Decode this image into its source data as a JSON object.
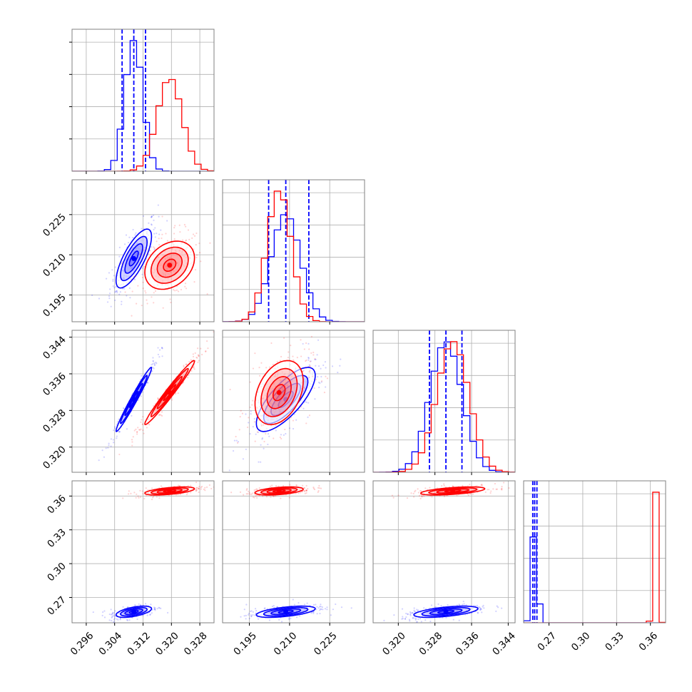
{
  "chart_data": {
    "type": "corner",
    "colors": {
      "blue_model": "#0000ff",
      "red_model": "#ff0000",
      "grid": "#b0b0b0",
      "axes": "#808080"
    },
    "grid": true,
    "n_params": 4,
    "param_ranges": [
      [
        0.292,
        0.332
      ],
      [
        0.185,
        0.238
      ],
      [
        0.3145,
        0.3455
      ],
      [
        0.2475,
        0.3735
      ]
    ],
    "ticks": [
      [
        "0.296",
        "0.304",
        "0.312",
        "0.320",
        "0.328"
      ],
      [
        "0.195",
        "0.210",
        "0.225"
      ],
      [
        "0.320",
        "0.328",
        "0.336",
        "0.344"
      ],
      [
        "0.27",
        "0.30",
        "0.33",
        "0.36"
      ]
    ],
    "series": [
      {
        "color": "blue_model",
        "means": [
          0.3094,
          0.2086,
          0.3304,
          0.2573
        ],
        "stds": [
          0.0025,
          0.0055,
          0.0035,
          0.0025
        ],
        "quantiles": [
          [
            0.3061,
            0.3094,
            0.3127
          ],
          [
            0.2022,
            0.2086,
            0.2172
          ],
          [
            0.3268,
            0.3304,
            0.3339
          ],
          [
            0.2556,
            0.2573,
            0.2593
          ]
        ],
        "correlations": [
          [
            0,
            1,
            0.75
          ],
          [
            0,
            2,
            0.98
          ],
          [
            1,
            2,
            0.75
          ],
          [
            0,
            3,
            0.55
          ],
          [
            1,
            3,
            0.55
          ],
          [
            2,
            3,
            0.55
          ]
        ]
      },
      {
        "color": "red_model",
        "means": [
          0.3195,
          0.2061,
          0.3319,
          0.3645
        ],
        "stds": [
          0.0035,
          0.0045,
          0.0035,
          0.0018
        ],
        "quantiles": [],
        "correlations": [
          [
            0,
            1,
            0.3
          ],
          [
            0,
            2,
            0.98
          ],
          [
            1,
            2,
            0.35
          ],
          [
            0,
            3,
            0.55
          ],
          [
            1,
            3,
            0.45
          ],
          [
            2,
            3,
            0.55
          ]
        ]
      }
    ]
  }
}
